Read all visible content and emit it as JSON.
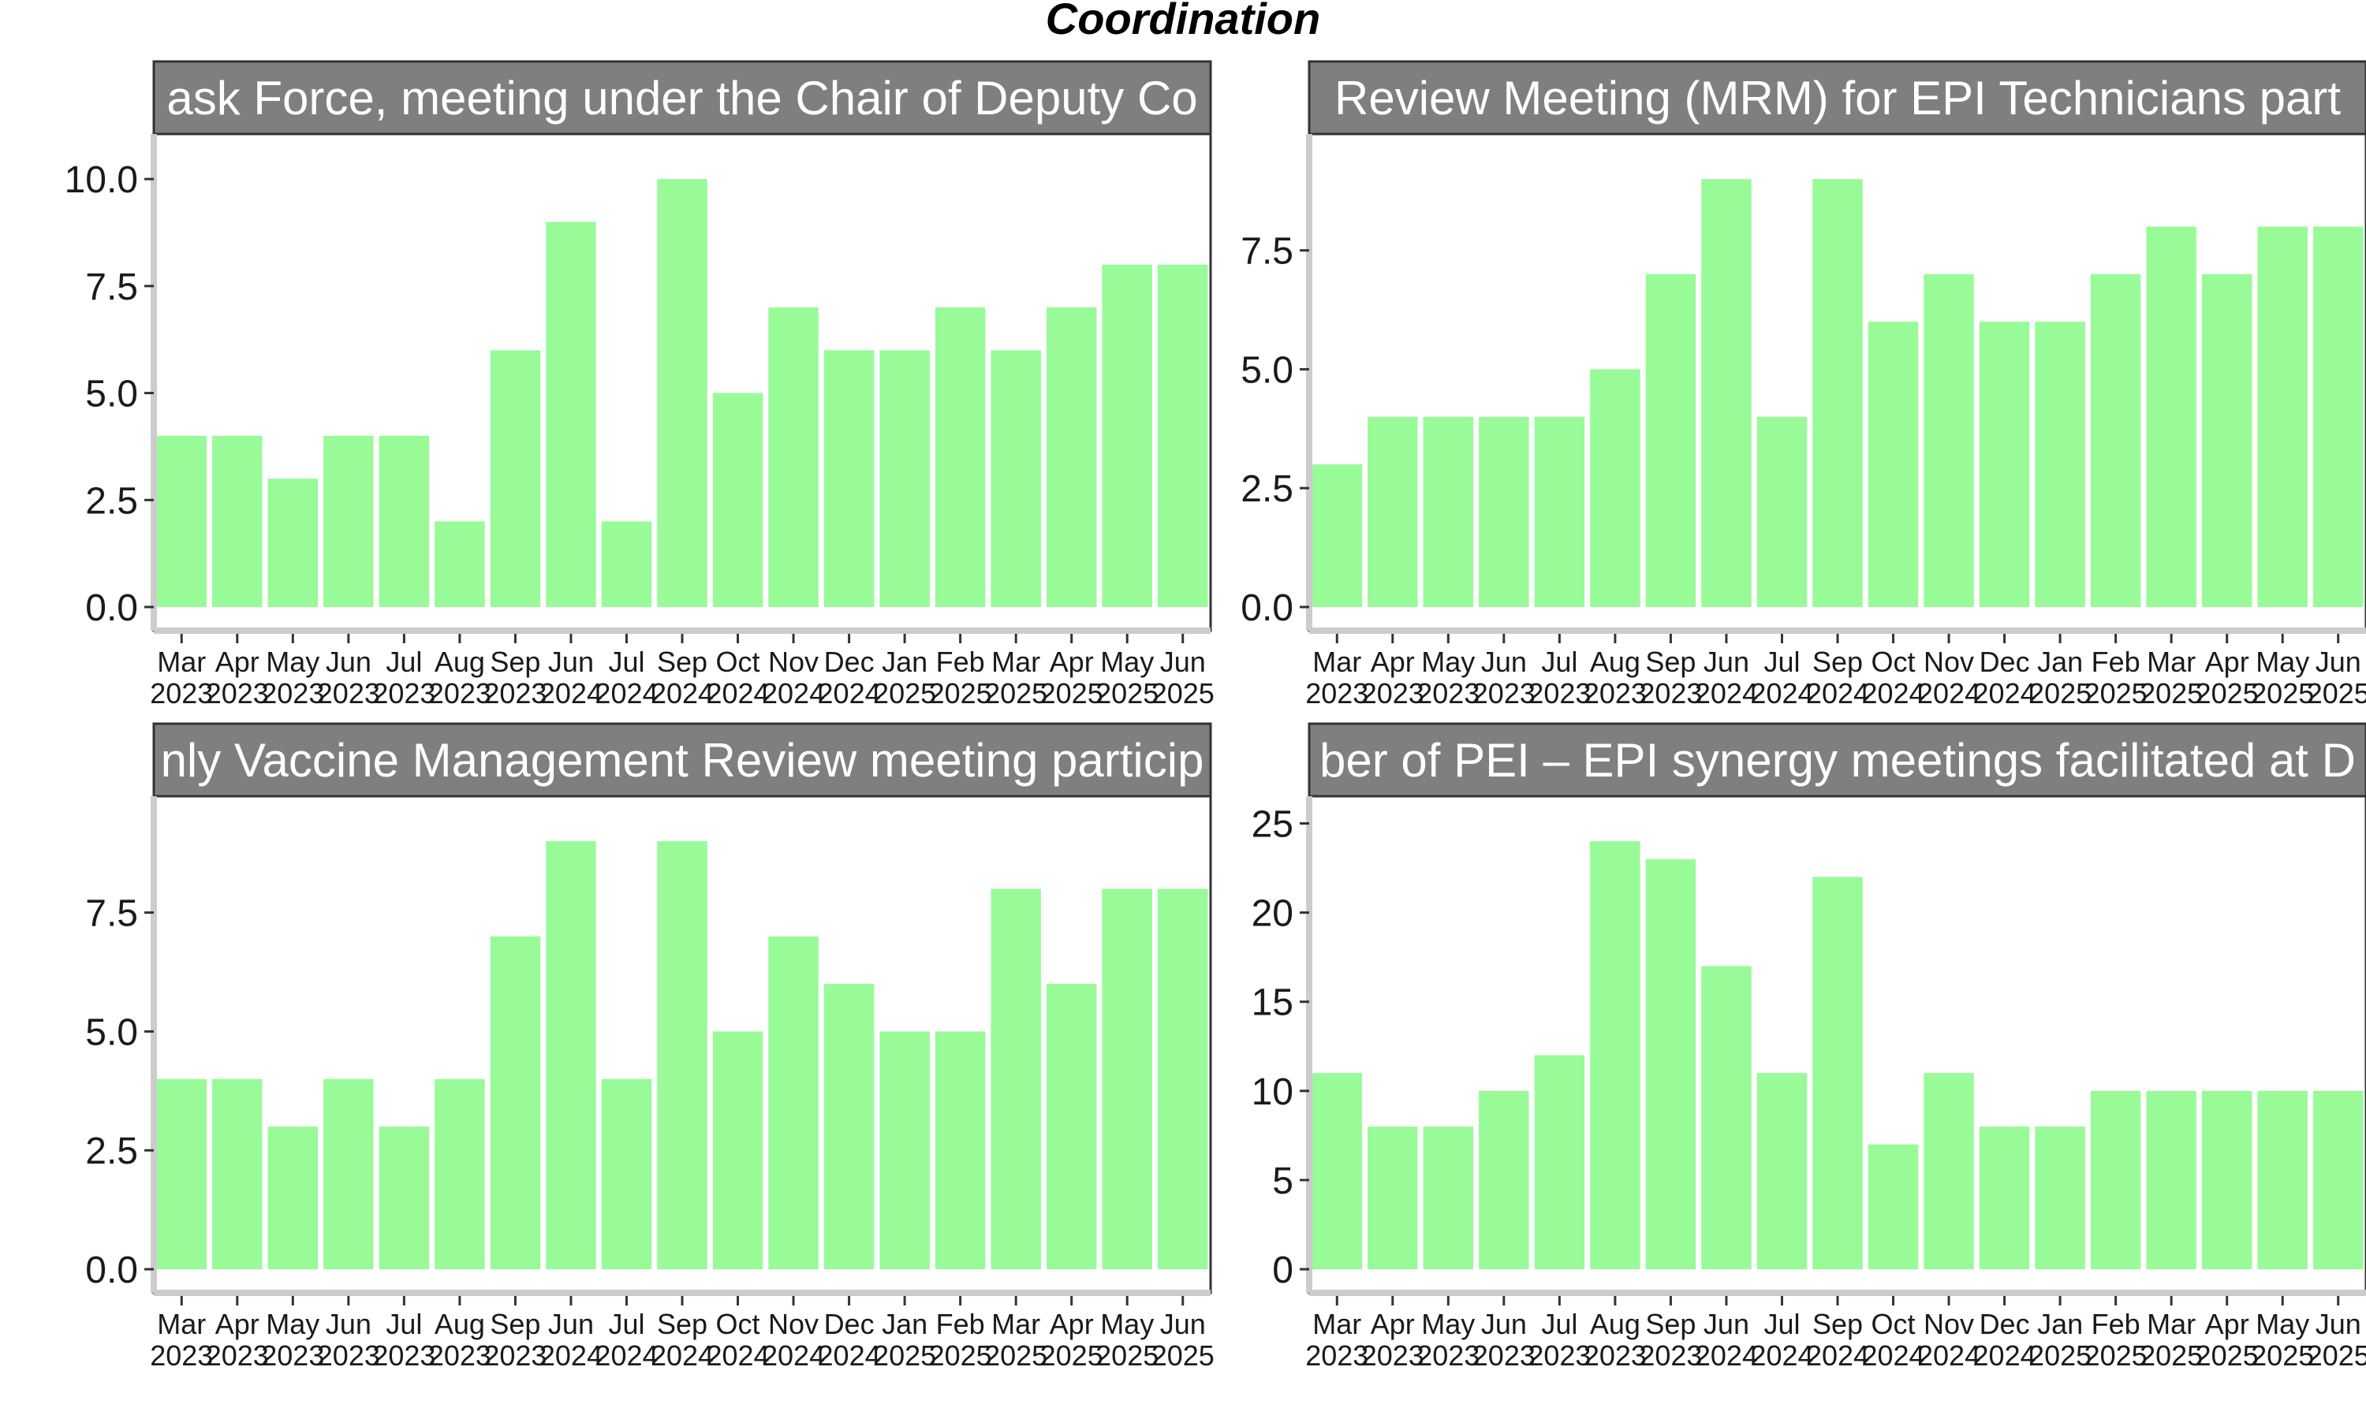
{
  "title": "Coordination",
  "colors": {
    "bar": "#98FB98",
    "strip_fill": "#7f7f7f",
    "strip_border": "#333333",
    "axis_line": "#cccccc",
    "panel_border": "#333333"
  },
  "chart_data": [
    {
      "type": "bar",
      "facet_label": "ask Force,  meeting under the Chair of Deputy Co",
      "categories": [
        "Mar\n2023",
        "Apr\n2023",
        "May\n2023",
        "Jun\n2023",
        "Jul\n2023",
        "Aug\n2023",
        "Sep\n2023",
        "Jun\n2024",
        "Jul\n2024",
        "Sep\n2024",
        "Oct\n2024",
        "Nov\n2024",
        "Dec\n2024",
        "Jan\n2025",
        "Feb\n2025",
        "Mar\n2025",
        "Apr\n2025",
        "May\n2025",
        "Jun\n2025"
      ],
      "values": [
        4,
        4,
        3,
        4,
        4,
        2,
        6,
        9,
        2,
        10,
        5,
        7,
        6,
        6,
        7,
        6,
        7,
        8,
        8
      ],
      "ylim": [
        0,
        10.5
      ],
      "yticks": [
        "0.0",
        "2.5",
        "5.0",
        "7.5",
        "10.0"
      ],
      "ytick_values": [
        0,
        2.5,
        5,
        7.5,
        10
      ]
    },
    {
      "type": "bar",
      "facet_label": "Review Meeting (MRM) for EPI Technicians part",
      "categories": [
        "Mar\n2023",
        "Apr\n2023",
        "May\n2023",
        "Jun\n2023",
        "Jul\n2023",
        "Aug\n2023",
        "Sep\n2023",
        "Jun\n2024",
        "Jul\n2024",
        "Sep\n2024",
        "Oct\n2024",
        "Nov\n2024",
        "Dec\n2024",
        "Jan\n2025",
        "Feb\n2025",
        "Mar\n2025",
        "Apr\n2025",
        "May\n2025",
        "Jun\n2025"
      ],
      "values": [
        3,
        4,
        4,
        4,
        4,
        5,
        7,
        9,
        4,
        9,
        6,
        7,
        6,
        6,
        7,
        8,
        7,
        8,
        8
      ],
      "ylim": [
        0,
        9.45
      ],
      "yticks": [
        "0.0",
        "2.5",
        "5.0",
        "7.5"
      ],
      "ytick_values": [
        0,
        2.5,
        5,
        7.5
      ]
    },
    {
      "type": "bar",
      "facet_label": "nly Vaccine Management Review meeting particip",
      "categories": [
        "Mar\n2023",
        "Apr\n2023",
        "May\n2023",
        "Jun\n2023",
        "Jul\n2023",
        "Aug\n2023",
        "Sep\n2023",
        "Jun\n2024",
        "Jul\n2024",
        "Sep\n2024",
        "Oct\n2024",
        "Nov\n2024",
        "Dec\n2024",
        "Jan\n2025",
        "Feb\n2025",
        "Mar\n2025",
        "Apr\n2025",
        "May\n2025",
        "Jun\n2025"
      ],
      "values": [
        4,
        4,
        3,
        4,
        3,
        4,
        7,
        9,
        4,
        9,
        5,
        7,
        6,
        5,
        5,
        8,
        6,
        8,
        8
      ],
      "ylim": [
        0,
        9.45
      ],
      "yticks": [
        "0.0",
        "2.5",
        "5.0",
        "7.5"
      ],
      "ytick_values": [
        0,
        2.5,
        5,
        7.5
      ]
    },
    {
      "type": "bar",
      "facet_label": "ber of PEI – EPI synergy meetings facilitated at D",
      "categories": [
        "Mar\n2023",
        "Apr\n2023",
        "May\n2023",
        "Jun\n2023",
        "Jul\n2023",
        "Aug\n2023",
        "Sep\n2023",
        "Jun\n2024",
        "Jul\n2024",
        "Sep\n2024",
        "Oct\n2024",
        "Nov\n2024",
        "Dec\n2024",
        "Jan\n2025",
        "Feb\n2025",
        "Mar\n2025",
        "Apr\n2025",
        "May\n2025",
        "Jun\n2025"
      ],
      "values": [
        11,
        8,
        8,
        10,
        12,
        24,
        23,
        17,
        11,
        22,
        7,
        11,
        8,
        8,
        10,
        10,
        10,
        10,
        10
      ],
      "ylim": [
        0,
        25.2
      ],
      "yticks": [
        "0",
        "5",
        "10",
        "15",
        "20",
        "25"
      ],
      "ytick_values": [
        0,
        5,
        10,
        15,
        20,
        25
      ]
    }
  ]
}
